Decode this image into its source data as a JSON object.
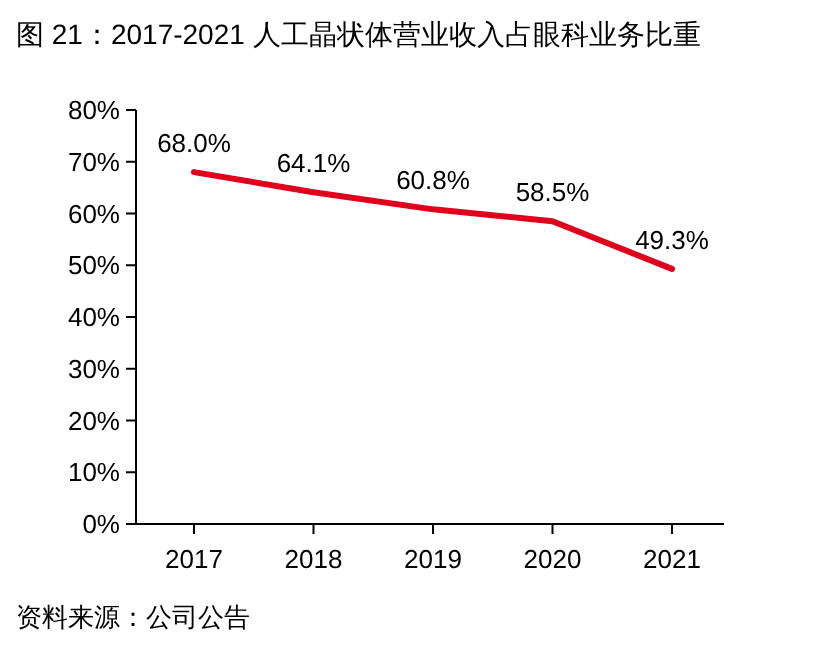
{
  "chart_data": {
    "type": "line",
    "title": "图 21：2017-2021 人工晶状体营业收入占眼科业务比重",
    "categories": [
      "2017",
      "2018",
      "2019",
      "2020",
      "2021"
    ],
    "values": [
      68.0,
      64.1,
      60.8,
      58.5,
      49.3
    ],
    "value_labels": [
      "68.0%",
      "64.1%",
      "60.8%",
      "58.5%",
      "49.3%"
    ],
    "color": "#e0001b",
    "marker": "none",
    "line_style": "solid",
    "grid": false,
    "ylim": [
      0,
      80
    ],
    "yticks": [
      {
        "value": 0,
        "label": "0%"
      },
      {
        "value": 10,
        "label": "10%"
      },
      {
        "value": 20,
        "label": "20%"
      },
      {
        "value": 30,
        "label": "30%"
      },
      {
        "value": 40,
        "label": "40%"
      },
      {
        "value": 50,
        "label": "50%"
      },
      {
        "value": 60,
        "label": "60%"
      },
      {
        "value": 70,
        "label": "70%"
      },
      {
        "value": 80,
        "label": "80%"
      }
    ],
    "annotations": [
      "资料来源：公司公告"
    ]
  }
}
